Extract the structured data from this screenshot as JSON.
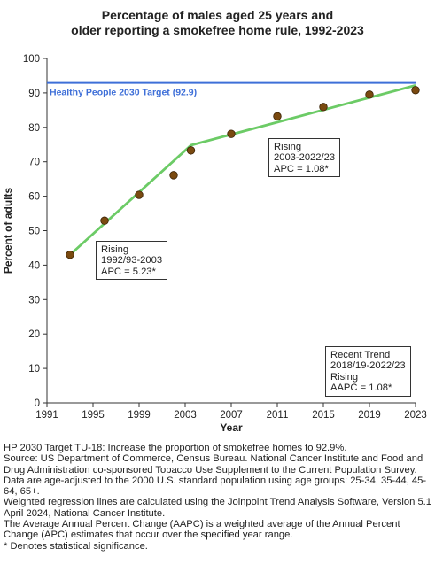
{
  "chart_data": {
    "type": "line",
    "title": "Percentage of males aged 25 years and older reporting a smokefree home rule, 1992-2023",
    "title_lines": [
      "Percentage of males aged 25 years and",
      "older reporting a smokefree home rule, 1992-2023"
    ],
    "xlabel": "Year",
    "ylabel": "Percent of adults",
    "xlim": [
      1991,
      2023
    ],
    "ylim": [
      0,
      100
    ],
    "x_ticks": [
      1991,
      1995,
      1999,
      2003,
      2007,
      2011,
      2015,
      2019,
      2023
    ],
    "y_ticks": [
      0,
      10,
      20,
      30,
      40,
      50,
      60,
      70,
      80,
      90,
      100
    ],
    "grid": false,
    "series": [
      {
        "type": "scatter",
        "color": "#7a4a10",
        "points": [
          {
            "x": 1993,
            "y": 43.0
          },
          {
            "x": 1996,
            "y": 52.9
          },
          {
            "x": 1999,
            "y": 60.4
          },
          {
            "x": 2002,
            "y": 66.1
          },
          {
            "x": 2003.5,
            "y": 73.3
          },
          {
            "x": 2007,
            "y": 78.1
          },
          {
            "x": 2011,
            "y": 83.2
          },
          {
            "x": 2015,
            "y": 85.9
          },
          {
            "x": 2019,
            "y": 89.5
          },
          {
            "x": 2023,
            "y": 90.8
          }
        ]
      },
      {
        "type": "line",
        "color": "#6ccb66",
        "points": [
          {
            "x": 1993,
            "y": 43.0
          },
          {
            "x": 2003.5,
            "y": 74.8
          },
          {
            "x": 2023,
            "y": 92.2
          }
        ]
      }
    ],
    "target": {
      "value": 92.9,
      "label": "Healthy People 2030 Target (92.9)",
      "color": "#3e6fd8"
    },
    "annotations": [
      {
        "lines": [
          "Rising",
          "1992/93-2003",
          "APC =  5.23*"
        ]
      },
      {
        "lines": [
          "Rising",
          "2003-2022/23",
          "APC =  1.08*"
        ]
      },
      {
        "lines": [
          "Recent Trend",
          "2018/19-2022/23",
          "Rising",
          "AAPC =  1.08*"
        ]
      }
    ]
  },
  "footnotes": [
    "HP 2030 Target TU-18: Increase the proportion of smokefree homes to 92.9%.",
    "Source: US Department of Commerce, Census Bureau. National Cancer Institute and Food and Drug Administration co-sponsored Tobacco Use Supplement to the Current Population Survey.",
    "Data are age-adjusted to the 2000 U.S. standard population using age groups: 25-34, 35-44, 45-64, 65+.",
    "Weighted regression lines are calculated using the Joinpoint Trend Analysis Software, Version 5.1 April 2024, National Cancer Institute.",
    "The Average Annual Percent Change (AAPC) is a weighted average of the Annual Percent Change (APC) estimates that occur over the specified year range.",
    "* Denotes statistical significance."
  ]
}
